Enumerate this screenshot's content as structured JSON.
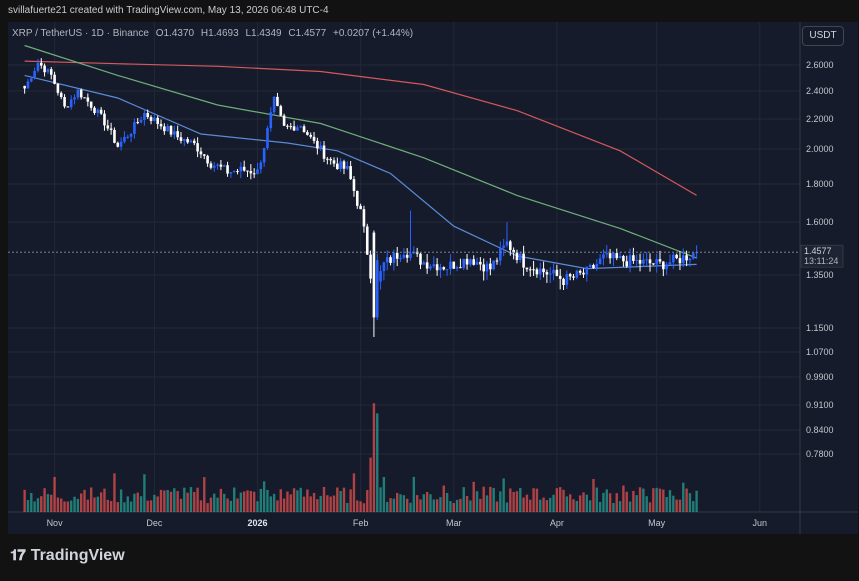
{
  "header": {
    "attribution": "svillafuerte21 created with TradingView.com, May 13, 2026 06:48 UTC-4"
  },
  "legend": {
    "symbol": "XRP / TetherUS · 1D · Binance",
    "open": "O1.4370",
    "high": "H1.4693",
    "low": "L1.4349",
    "close": "C1.4577",
    "change": "+0.0207 (+1.44%)"
  },
  "currency_button": "USDT",
  "price_badge": {
    "price": "1.4577",
    "countdown": "13:11:24"
  },
  "brand": {
    "name": "TradingView",
    "icon": "tradingview-logo-icon"
  },
  "colors": {
    "up": "#2962ff",
    "down": "#ffffff",
    "vol_up": "#26a69a",
    "vol_down": "#ef5350",
    "ma_fast": "#5b8bd6",
    "ma_mid": "#6fae7a",
    "ma_slow": "#d4585c",
    "background": "#151b2b"
  },
  "chart_data": {
    "type": "candlestick",
    "y_ticks": [
      "2.6000",
      "2.4000",
      "2.2000",
      "2.0000",
      "1.8000",
      "1.6000",
      "1.3500",
      "1.1500",
      "1.0700",
      "0.9900",
      "0.9100",
      "0.8400",
      "0.7800"
    ],
    "x_ticks": [
      "Nov",
      "Dec",
      "2026",
      "Feb",
      "Mar",
      "Apr",
      "May",
      "Jun"
    ],
    "last_price": 1.4577,
    "close_path": [
      [
        "2025-10-23",
        2.42
      ],
      [
        "2025-10-27",
        2.62
      ],
      [
        "2025-10-31",
        2.52
      ],
      [
        "2025-11-04",
        2.28
      ],
      [
        "2025-11-08",
        2.4
      ],
      [
        "2025-11-12",
        2.3
      ],
      [
        "2025-11-16",
        2.18
      ],
      [
        "2025-11-20",
        2.02
      ],
      [
        "2025-11-24",
        2.12
      ],
      [
        "2025-11-28",
        2.24
      ],
      [
        "2025-12-03",
        2.16
      ],
      [
        "2025-12-08",
        2.08
      ],
      [
        "2025-12-13",
        2.03
      ],
      [
        "2025-12-18",
        1.92
      ],
      [
        "2025-12-23",
        1.87
      ],
      [
        "2025-12-28",
        1.88
      ],
      [
        "2026-01-01",
        1.87
      ],
      [
        "2026-01-03",
        2.02
      ],
      [
        "2026-01-06",
        2.33
      ],
      [
        "2026-01-09",
        2.14
      ],
      [
        "2026-01-14",
        2.16
      ],
      [
        "2026-01-18",
        2.04
      ],
      [
        "2026-01-23",
        1.93
      ],
      [
        "2026-01-28",
        1.88
      ],
      [
        "2026-02-01",
        1.65
      ],
      [
        "2026-02-05",
        1.27
      ],
      [
        "2026-02-08",
        1.4
      ],
      [
        "2026-02-14",
        1.47
      ],
      [
        "2026-02-20",
        1.41
      ],
      [
        "2026-02-27",
        1.39
      ],
      [
        "2026-03-06",
        1.43
      ],
      [
        "2026-03-12",
        1.38
      ],
      [
        "2026-03-17",
        1.5
      ],
      [
        "2026-03-22",
        1.41
      ],
      [
        "2026-03-29",
        1.36
      ],
      [
        "2026-04-04",
        1.33
      ],
      [
        "2026-04-10",
        1.36
      ],
      [
        "2026-04-15",
        1.43
      ],
      [
        "2026-04-20",
        1.42
      ],
      [
        "2026-04-26",
        1.41
      ],
      [
        "2026-05-02",
        1.4
      ],
      [
        "2026-05-07",
        1.42
      ],
      [
        "2026-05-13",
        1.4577
      ]
    ],
    "ma_fast": [
      [
        "2025-10-23",
        2.52
      ],
      [
        "2025-11-20",
        2.35
      ],
      [
        "2025-12-15",
        2.1
      ],
      [
        "2026-01-10",
        2.04
      ],
      [
        "2026-01-25",
        1.99
      ],
      [
        "2026-02-10",
        1.86
      ],
      [
        "2026-03-01",
        1.58
      ],
      [
        "2026-03-20",
        1.44
      ],
      [
        "2026-04-10",
        1.38
      ],
      [
        "2026-05-13",
        1.4
      ]
    ],
    "ma_mid": [
      [
        "2025-10-23",
        2.75
      ],
      [
        "2025-11-20",
        2.52
      ],
      [
        "2025-12-20",
        2.3
      ],
      [
        "2026-01-20",
        2.17
      ],
      [
        "2026-02-20",
        1.95
      ],
      [
        "2026-03-20",
        1.74
      ],
      [
        "2026-04-20",
        1.57
      ],
      [
        "2026-05-13",
        1.43
      ]
    ],
    "ma_slow": [
      [
        "2025-10-23",
        2.63
      ],
      [
        "2025-11-20",
        2.61
      ],
      [
        "2025-12-20",
        2.59
      ],
      [
        "2026-01-20",
        2.55
      ],
      [
        "2026-02-20",
        2.45
      ],
      [
        "2026-03-20",
        2.26
      ],
      [
        "2026-04-20",
        1.99
      ],
      [
        "2026-05-13",
        1.74
      ]
    ]
  }
}
